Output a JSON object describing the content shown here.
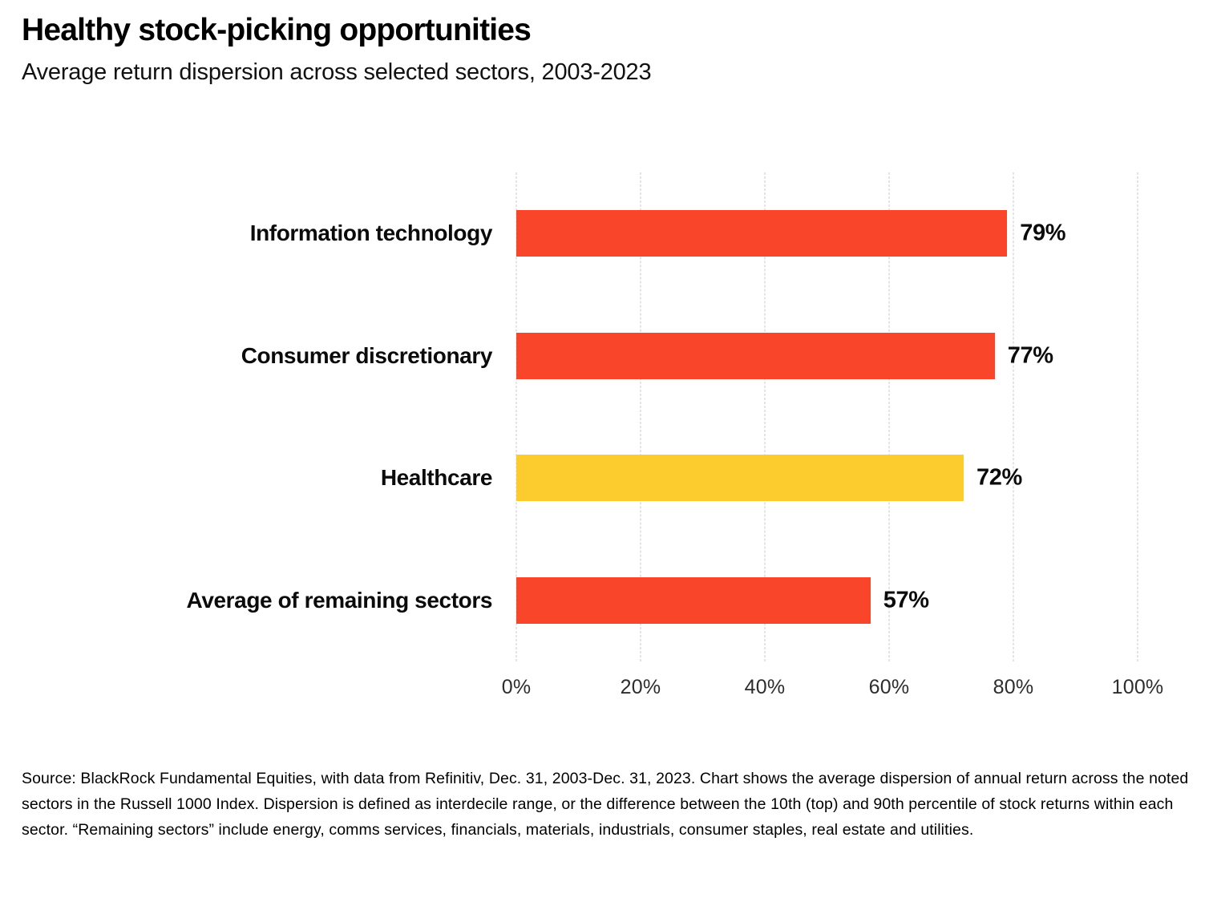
{
  "header": {
    "title": "Healthy stock-picking opportunities",
    "subtitle": "Average return dispersion across selected sectors, 2003-2023"
  },
  "chart_data": {
    "type": "bar",
    "orientation": "horizontal",
    "title": "Healthy stock-picking opportunities",
    "subtitle": "Average return dispersion across selected sectors, 2003-2023",
    "categories": [
      "Information technology",
      "Consumer discretionary",
      "Healthcare",
      "Average of remaining sectors"
    ],
    "values": [
      79,
      77,
      72,
      57
    ],
    "value_labels": [
      "79%",
      "77%",
      "72%",
      "57%"
    ],
    "bar_colors": [
      "#F9462B",
      "#F9462B",
      "#FCCB2E",
      "#F9462B"
    ],
    "x_ticks": [
      "0%",
      "20%",
      "40%",
      "60%",
      "80%",
      "100%"
    ],
    "x_tick_values": [
      0,
      20,
      40,
      60,
      80,
      100
    ],
    "xlim": [
      0,
      100
    ],
    "xlabel": "",
    "ylabel": "",
    "grid": "vertical dashed gridlines at each 20% tick",
    "legend": "none"
  },
  "colors": {
    "bar_red": "#F9462B",
    "bar_yellow": "#FCCB2E",
    "gridline": "#c9c9c9",
    "title_text": "#000000",
    "tick_text": "#2d2d2d"
  },
  "footer": {
    "source": "Source: BlackRock Fundamental Equities, with data from Refinitiv, Dec. 31, 2003-Dec. 31, 2023. Chart shows the average dispersion of annual return across the noted sectors in the Russell 1000 Index. Dispersion is defined as interdecile range, or the difference between the 10th (top) and 90th percentile of stock returns within each sector. “Remaining sectors” include energy, comms services, financials, materials, industrials, consumer staples, real estate and utilities."
  }
}
